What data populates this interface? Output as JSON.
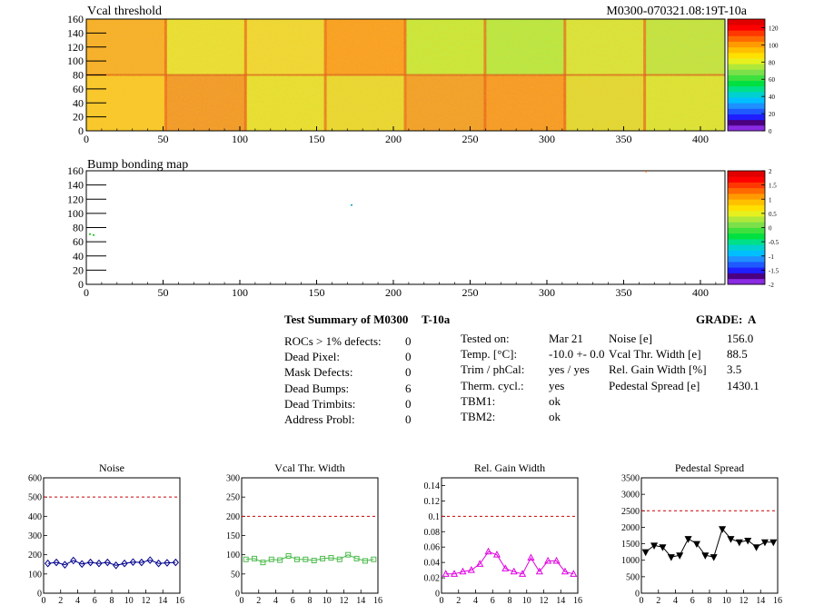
{
  "top_map": {
    "title": "Vcal threshold",
    "id_label": "M0300-070321.08:19T-10a",
    "xticks": [
      "0",
      "50",
      "100",
      "150",
      "200",
      "250",
      "300",
      "350",
      "400"
    ],
    "yticks": [
      "0",
      "20",
      "40",
      "60",
      "80",
      "100",
      "120",
      "140",
      "160"
    ],
    "zticks": [
      "0",
      "20",
      "40",
      "60",
      "80",
      "100",
      "120"
    ]
  },
  "bump_map": {
    "title": "Bump bonding map",
    "xticks": [
      "0",
      "50",
      "100",
      "150",
      "200",
      "250",
      "300",
      "350",
      "400"
    ],
    "yticks": [
      "0",
      "20",
      "40",
      "60",
      "80",
      "100",
      "120",
      "140",
      "160"
    ],
    "zticks": [
      "-2",
      "-1.5",
      "-1",
      "-0.5",
      "0",
      "0.5",
      "1",
      "1.5",
      "2"
    ]
  },
  "summary": {
    "heading": "Test Summary of M0300",
    "test": "T-10a",
    "grade": "GRADE:  A",
    "left": [
      {
        "label": "ROCs > 1% defects:",
        "value": "0"
      },
      {
        "label": "Dead Pixel:",
        "value": "0"
      },
      {
        "label": "Mask Defects:",
        "value": "0"
      },
      {
        "label": "Dead Bumps:",
        "value": "6"
      },
      {
        "label": "Dead Trimbits:",
        "value": "0"
      },
      {
        "label": "Address Probl:",
        "value": "0"
      }
    ],
    "mid": [
      {
        "label": "Tested on:",
        "value": "Mar 21"
      },
      {
        "label": "Temp. [°C]:",
        "value": "-10.0 +- 0.0"
      },
      {
        "label": "Trim / phCal:",
        "value": "yes / yes"
      },
      {
        "label": "Therm. cycl.:",
        "value": "yes"
      },
      {
        "label": "TBM1:",
        "value": "ok"
      },
      {
        "label": "TBM2:",
        "value": "ok"
      }
    ],
    "right": [
      {
        "label": "Noise [e]",
        "value": "156.0"
      },
      {
        "label": "Vcal Thr. Width [e]",
        "value": "88.5"
      },
      {
        "label": "Rel. Gain Width [%]",
        "value": "3.5"
      },
      {
        "label": "Pedestal Spread [e]",
        "value": "1430.1"
      }
    ]
  },
  "chart_data": [
    {
      "type": "heatmap",
      "title": "Vcal threshold",
      "xlim": [
        0,
        416
      ],
      "ylim": [
        0,
        160
      ],
      "zlim": [
        0,
        130
      ],
      "notes": "16 ROCs (2 rows x 8), values mostly 70-120"
    },
    {
      "type": "heatmap",
      "title": "Bump bonding map",
      "xlim": [
        0,
        416
      ],
      "ylim": [
        0,
        160
      ],
      "zlim": [
        -2,
        2
      ]
    },
    {
      "type": "line",
      "title": "Noise",
      "color": "#00008b",
      "marker": "diamond",
      "x": [
        0,
        1,
        2,
        3,
        4,
        5,
        6,
        7,
        8,
        9,
        10,
        11,
        12,
        13,
        14,
        15
      ],
      "values": [
        155,
        160,
        148,
        170,
        152,
        160,
        155,
        160,
        145,
        155,
        162,
        160,
        172,
        155,
        158,
        160
      ],
      "xlim": [
        0,
        16
      ],
      "ylim": [
        0,
        600
      ],
      "threshold": 500,
      "xticks": [
        "0",
        "2",
        "4",
        "6",
        "8",
        "10",
        "12",
        "14",
        "16"
      ],
      "yticks": [
        "0",
        "100",
        "200",
        "300",
        "400",
        "500",
        "600"
      ]
    },
    {
      "type": "line",
      "title": "Vcal Thr. Width",
      "color": "#4cbb4c",
      "marker": "square",
      "x": [
        0,
        1,
        2,
        3,
        4,
        5,
        6,
        7,
        8,
        9,
        10,
        11,
        12,
        13,
        14,
        15
      ],
      "values": [
        88,
        90,
        80,
        88,
        86,
        97,
        88,
        88,
        85,
        90,
        92,
        88,
        100,
        90,
        84,
        88
      ],
      "xlim": [
        0,
        16
      ],
      "ylim": [
        0,
        300
      ],
      "threshold": 200,
      "xticks": [
        "0",
        "2",
        "4",
        "6",
        "8",
        "10",
        "12",
        "14",
        "16"
      ],
      "yticks": [
        "0",
        "50",
        "100",
        "150",
        "200",
        "250",
        "300"
      ]
    },
    {
      "type": "line",
      "title": "Rel. Gain Width",
      "color": "#e000e0",
      "marker": "triangle",
      "x": [
        0,
        1,
        2,
        3,
        4,
        5,
        6,
        7,
        8,
        9,
        10,
        11,
        12,
        13,
        14,
        15
      ],
      "values": [
        0.025,
        0.025,
        0.028,
        0.03,
        0.038,
        0.054,
        0.05,
        0.032,
        0.028,
        0.025,
        0.046,
        0.028,
        0.042,
        0.042,
        0.028,
        0.025
      ],
      "xlim": [
        0,
        16
      ],
      "ylim": [
        0,
        0.15
      ],
      "threshold": 0.1,
      "xticks": [
        "0",
        "2",
        "4",
        "6",
        "8",
        "10",
        "12",
        "14",
        "16"
      ],
      "yticks": [
        "0",
        "0.02",
        "0.04",
        "0.06",
        "0.08",
        "0.1",
        "0.12",
        "0.14"
      ]
    },
    {
      "type": "line",
      "title": "Pedestal Spread",
      "color": "#000000",
      "marker": "triangle-down",
      "x": [
        0,
        1,
        2,
        3,
        4,
        5,
        6,
        7,
        8,
        9,
        10,
        11,
        12,
        13,
        14,
        15
      ],
      "values": [
        1250,
        1450,
        1400,
        1100,
        1150,
        1650,
        1500,
        1150,
        1100,
        1950,
        1650,
        1550,
        1600,
        1400,
        1550,
        1550
      ],
      "xlim": [
        0,
        16
      ],
      "ylim": [
        0,
        3500
      ],
      "threshold": 2500,
      "xticks": [
        "0",
        "2",
        "4",
        "6",
        "8",
        "10",
        "12",
        "14",
        "16"
      ],
      "yticks": [
        "0",
        "500",
        "1000",
        "1500",
        "2000",
        "2500",
        "3000",
        "3500"
      ]
    }
  ]
}
